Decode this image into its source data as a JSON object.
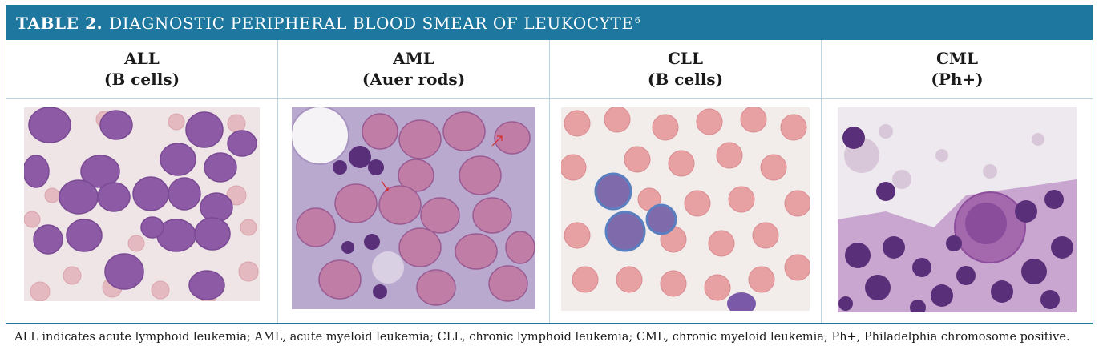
{
  "title": {
    "label": "TABLE 2.",
    "text": "DIAGNOSTIC PERIPHERAL BLOOD SMEAR OF LEUKOCYTE",
    "ref": "6"
  },
  "columns": [
    {
      "name": "ALL",
      "sub": "(B cells)"
    },
    {
      "name": "AML",
      "sub": "(Auer rods)"
    },
    {
      "name": "CLL",
      "sub": "(B cells)"
    },
    {
      "name": "CML",
      "sub": "(Ph+)"
    }
  ],
  "colors": {
    "header_bg": "#1e779e",
    "smear_bg_pink": "#efe2e4",
    "cell_purple": "#8a4d9c",
    "rbc_red": "#e8a4a6"
  },
  "footnote": "ALL indicates acute lymphoid leukemia; AML, acute myeloid leukemia; CLL, chronic lymphoid leukemia; CML, chronic myeloid leukemia; Ph+, Philadelphia chromosome positive."
}
